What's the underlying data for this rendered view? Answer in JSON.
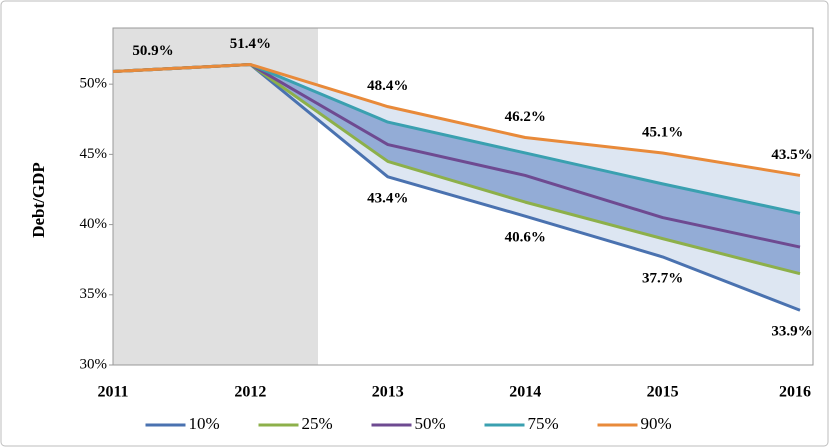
{
  "chart_data": {
    "type": "line",
    "y_label": "Debt/GDP",
    "categories": [
      "2011",
      "2012",
      "2013",
      "2014",
      "2015",
      "2016"
    ],
    "series": [
      {
        "name": "10%",
        "color": "#4a72b0",
        "values": [
          50.9,
          51.4,
          43.4,
          40.6,
          37.7,
          33.9
        ],
        "value_labels": [
          null,
          null,
          "43.4%",
          "40.6%",
          "37.7%",
          "33.9%"
        ]
      },
      {
        "name": "25%",
        "color": "#8db04a",
        "values": [
          50.9,
          51.4,
          44.5,
          41.6,
          39.0,
          36.5
        ]
      },
      {
        "name": "50%",
        "color": "#6e4a91",
        "values": [
          50.9,
          51.4,
          45.7,
          43.5,
          40.5,
          38.4
        ]
      },
      {
        "name": "75%",
        "color": "#3aa0b0",
        "values": [
          50.9,
          51.4,
          47.3,
          45.1,
          42.9,
          40.8
        ]
      },
      {
        "name": "90%",
        "color": "#e88a3a",
        "values": [
          50.9,
          51.4,
          48.4,
          46.2,
          45.1,
          43.5
        ],
        "value_labels": [
          "50.9%",
          "51.4%",
          "48.4%",
          "46.2%",
          "45.1%",
          "43.5%"
        ]
      }
    ],
    "fan_colors": [
      "#dde6f2",
      "#93acd6"
    ],
    "ylim": [
      30,
      54
    ],
    "yticks": [
      {
        "value": 30,
        "label": "30%"
      },
      {
        "value": 35,
        "label": "35%"
      },
      {
        "value": 40,
        "label": "40%"
      },
      {
        "value": 45,
        "label": "45%"
      },
      {
        "value": 50,
        "label": "50%"
      }
    ]
  }
}
